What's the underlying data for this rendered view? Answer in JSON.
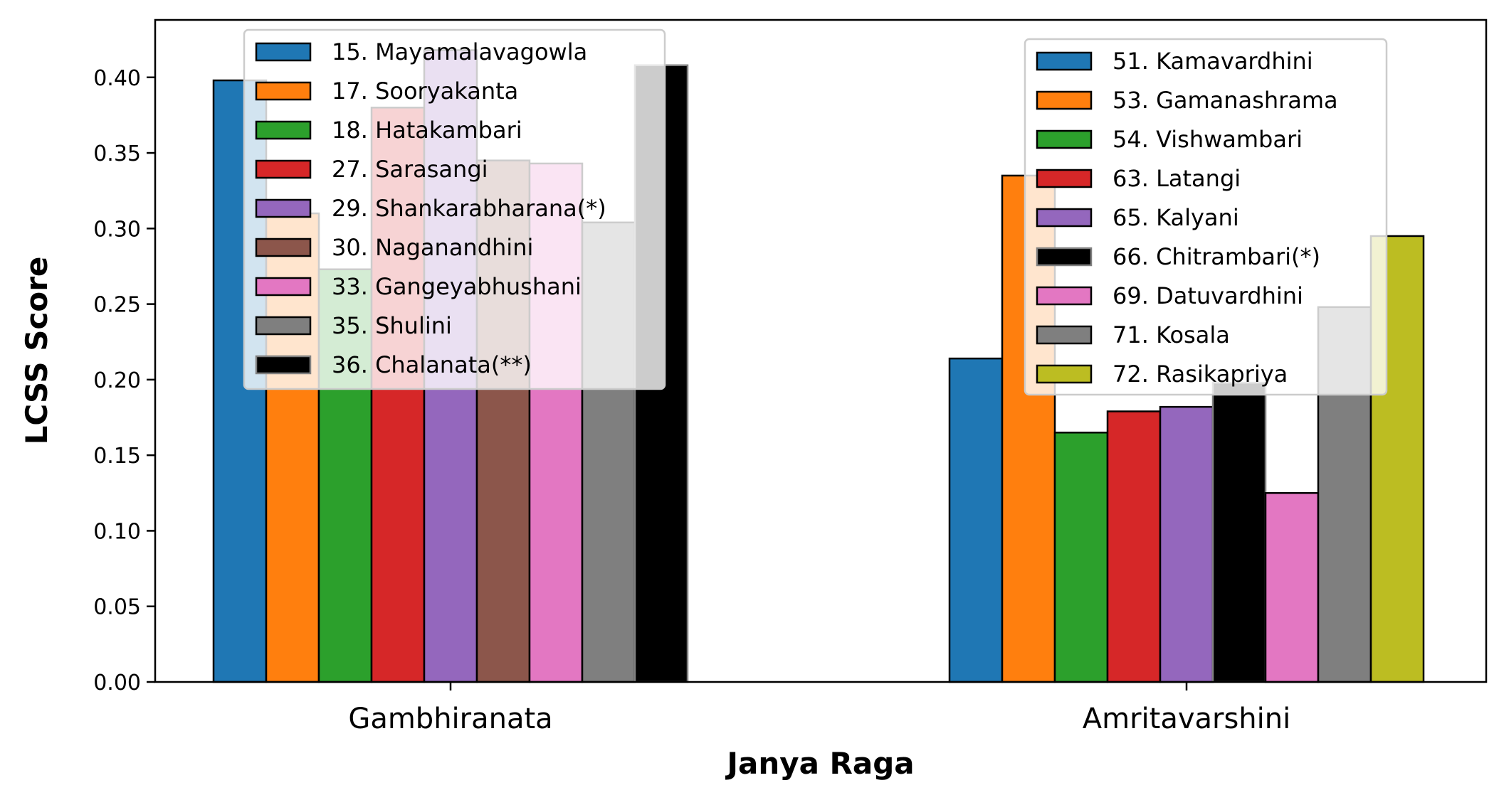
{
  "chart_data": {
    "type": "bar",
    "xlabel": "Janya Raga",
    "ylabel": "LCSS Score",
    "ylim": [
      0,
      0.438
    ],
    "yticks": [
      "0.00",
      "0.05",
      "0.10",
      "0.15",
      "0.20",
      "0.25",
      "0.30",
      "0.35",
      "0.40"
    ],
    "yticks_values": [
      0,
      0.05,
      0.1,
      0.15,
      0.2,
      0.25,
      0.3,
      0.35,
      0.4
    ],
    "grid": false,
    "groups": [
      {
        "category": "Gambhiranata",
        "legend_position": "upper-left",
        "series": [
          {
            "name": "15. Mayamalavagowla",
            "value": 0.398,
            "color": "#1f77b4"
          },
          {
            "name": "17. Sooryakanta",
            "value": 0.31,
            "color": "#ff7f0e"
          },
          {
            "name": "18. Hatakambari",
            "value": 0.273,
            "color": "#2ca02c"
          },
          {
            "name": "27. Sarasangi",
            "value": 0.38,
            "color": "#d62728"
          },
          {
            "name": "29. Shankarabharana(*)",
            "value": 0.418,
            "color": "#9467bd"
          },
          {
            "name": "30. Naganandhini",
            "value": 0.345,
            "color": "#8c564b"
          },
          {
            "name": "33. Gangeyabhushani",
            "value": 0.343,
            "color": "#e377c2"
          },
          {
            "name": "35. Shulini",
            "value": 0.304,
            "color": "#7f7f7f"
          },
          {
            "name": "36. Chalanata(**)",
            "value": 0.408,
            "color": "#000000",
            "edge": "#808080"
          }
        ]
      },
      {
        "category": "Amritavarshini",
        "legend_position": "upper-right",
        "series": [
          {
            "name": "51. Kamavardhini",
            "value": 0.214,
            "color": "#1f77b4"
          },
          {
            "name": "53. Gamanashrama",
            "value": 0.335,
            "color": "#ff7f0e"
          },
          {
            "name": "54. Vishwambari",
            "value": 0.165,
            "color": "#2ca02c"
          },
          {
            "name": "63. Latangi",
            "value": 0.179,
            "color": "#d62728"
          },
          {
            "name": "65. Kalyani",
            "value": 0.182,
            "color": "#9467bd"
          },
          {
            "name": "66. Chitrambari(*)",
            "value": 0.198,
            "color": "#000000",
            "edge": "#808080"
          },
          {
            "name": "69. Datuvardhini",
            "value": 0.125,
            "color": "#e377c2"
          },
          {
            "name": "71. Kosala",
            "value": 0.248,
            "color": "#7f7f7f"
          },
          {
            "name": "72. Rasikapriya",
            "value": 0.295,
            "color": "#bcbd22"
          }
        ]
      }
    ]
  }
}
